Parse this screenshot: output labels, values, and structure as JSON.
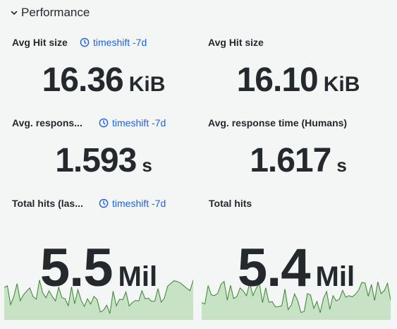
{
  "row": {
    "title": "Performance",
    "chevron_icon": "chevron-down-icon"
  },
  "panels": [
    {
      "title": "Avg Hit size",
      "timeshift": "timeshift -7d",
      "value": "16.36",
      "unit": "KiB"
    },
    {
      "title": "Avg Hit size",
      "timeshift": "",
      "value": "16.10",
      "unit": "KiB"
    },
    {
      "title": "Avg. respons...",
      "timeshift": "timeshift -7d",
      "value": "1.593",
      "unit": "s"
    },
    {
      "title": "Avg. response time (Humans)",
      "timeshift": "",
      "value": "1.617",
      "unit": "s"
    },
    {
      "title": "Total hits (las...",
      "timeshift": "timeshift -7d",
      "value": "5.5",
      "unit": "Mil"
    },
    {
      "title": "Total hits",
      "timeshift": "",
      "value": "5.4",
      "unit": "Mil"
    }
  ],
  "colors": {
    "sparkline_fill": "#c7e2c4",
    "sparkline_line": "#37872d",
    "link": "#1f62e0",
    "text": "#24292e"
  },
  "icons": {
    "timeshift": "clock-icon"
  }
}
